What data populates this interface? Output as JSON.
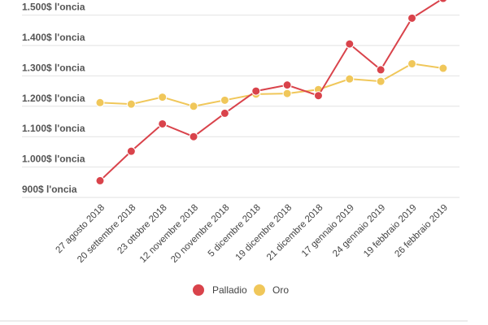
{
  "chart_data": {
    "type": "line",
    "categories": [
      "27 agosto 2018",
      "20 settembre 2018",
      "23 ottobre 2018",
      "12 novembre 2018",
      "20 novembre 2018",
      "5 dicembre 2018",
      "19 dicembre 2018",
      "21 dicembre 2018",
      "17 gennaio 2019",
      "24 gennaio 2019",
      "19 febbraio 2019",
      "26 febbraio 2019"
    ],
    "series": [
      {
        "name": "Palladio",
        "color": "#d9434b",
        "values": [
          955,
          1052,
          1142,
          1100,
          1177,
          1250,
          1270,
          1235,
          1405,
          1320,
          1490,
          1555
        ]
      },
      {
        "name": "Oro",
        "color": "#f0c75a",
        "values": [
          1212,
          1207,
          1230,
          1200,
          1220,
          1240,
          1242,
          1255,
          1290,
          1282,
          1340,
          1325
        ]
      }
    ],
    "yticks": [
      {
        "value": 900,
        "label": "900$ l'oncia"
      },
      {
        "value": 1000,
        "label": "1.000$ l'oncia"
      },
      {
        "value": 1100,
        "label": "1.100$ l'oncia"
      },
      {
        "value": 1200,
        "label": "1.200$ l'oncia"
      },
      {
        "value": 1300,
        "label": "1.300$ l'oncia"
      },
      {
        "value": 1400,
        "label": "1.400$ l'oncia"
      },
      {
        "value": 1500,
        "label": "1.500$ l'oncia"
      }
    ],
    "ylim": [
      900,
      1500
    ],
    "grid": true,
    "legend_position": "bottom",
    "title": "",
    "xlabel": "",
    "ylabel": ""
  }
}
